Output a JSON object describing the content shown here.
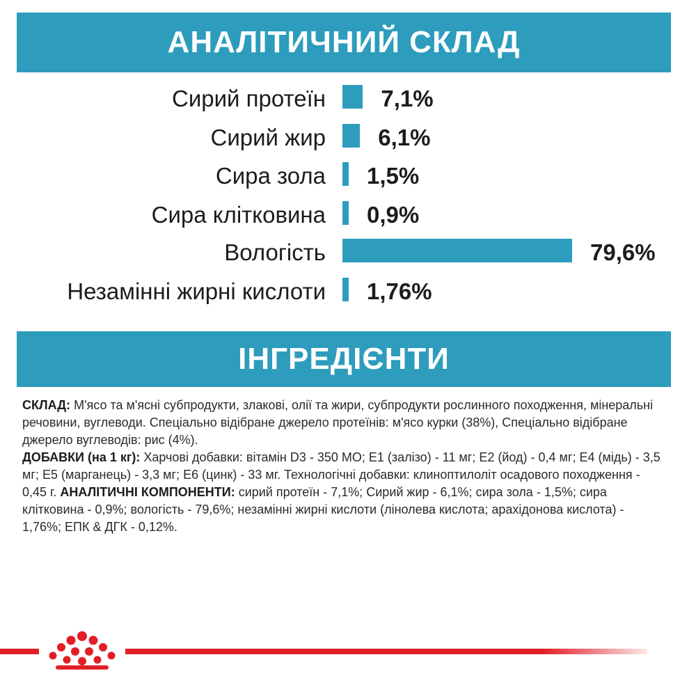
{
  "analysis": {
    "title": "АНАЛІТИЧНИЙ СКЛАД",
    "accent_color": "#2d9cbd",
    "nutrients": [
      {
        "label": "Сирий протеїн",
        "value_text": "7,1%",
        "value": 7.1
      },
      {
        "label": "Сирий жир",
        "value_text": "6,1%",
        "value": 6.1
      },
      {
        "label": "Сира зола",
        "value_text": "1,5%",
        "value": 1.5
      },
      {
        "label": "Сира клітковина",
        "value_text": "0,9%",
        "value": 0.9
      },
      {
        "label": "Вологість",
        "value_text": "79,6%",
        "value": 79.6
      },
      {
        "label": "Незамінні жирні кислоти",
        "value_text": "1,76%",
        "value": 1.76
      }
    ]
  },
  "ingredients": {
    "title": "ІНГРЕДІЄНТИ",
    "composition_label": "СКЛАД:",
    "composition_text": " М'ясо та м'ясні субпродукти, злакові, олії та жири, субпродукти рослинного походження, мінеральні речовини, вуглеводи. Спеціально відібране джерело протеїнів: м'ясо курки (38%), Спеціально відібране джерело вуглеводів: рис (4%).",
    "additives_label": "ДОБАВКИ (на 1 кг):",
    "additives_text": " Харчові добавки: вітамін D3 - 350 МО; Е1 (залізо) - 11 мг; Е2 (йод) - 0,4 мг; Е4 (мідь) - 3,5 мг; Е5 (марганець) - 3,3 мг; Е6 (цинк) - 33 мг. Технологічні добавки: клиноптилоліт осадового походження - 0,45 г. ",
    "analytical_label": "АНАЛІТИЧНІ КОМПОНЕНТИ:",
    "analytical_text": " сирий протеїн - 7,1%; Сирий жир - 6,1%; сира зола - 1,5%; сира клітковина - 0,9%; вологість - 79,6%; незамінні жирні кислоти (лінолева кислота; арахідонова кислота) - 1,76%;  ЕПК & ДГК - 0,12%."
  },
  "footer": {
    "logo_icon": "royal-canin-crown-icon",
    "brand_color": "#e21e26"
  }
}
